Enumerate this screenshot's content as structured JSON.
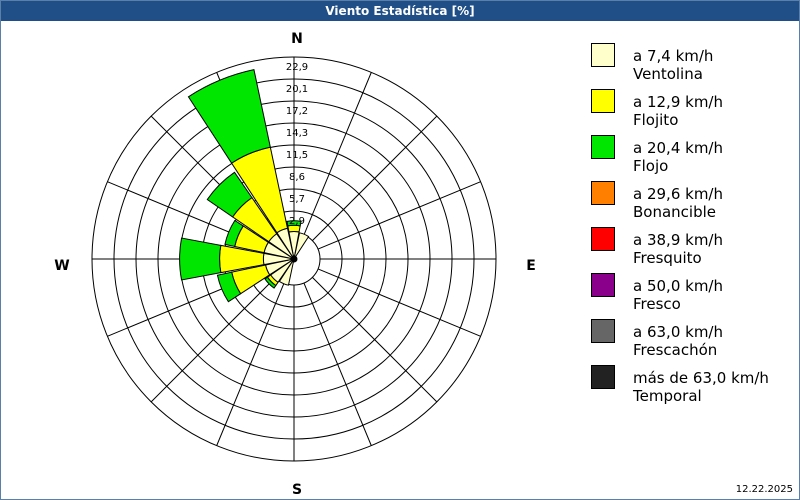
{
  "window": {
    "title": "Viento Estadística [%]"
  },
  "footer": {
    "date": "12.22.2025"
  },
  "directions": {
    "n": "N",
    "e": "E",
    "s": "S",
    "w": "W"
  },
  "legend": [
    {
      "speed": "a 7,4 km/h",
      "name": "Ventolina",
      "color": "#ffffcc"
    },
    {
      "speed": "a 12,9 km/h",
      "name": "Flojito",
      "color": "#ffff00"
    },
    {
      "speed": "a 20,4 km/h",
      "name": "Flojo",
      "color": "#00e600"
    },
    {
      "speed": "a 29,6 km/h",
      "name": "Bonancible",
      "color": "#ff8000"
    },
    {
      "speed": "a 38,9 km/h",
      "name": "Fresquito",
      "color": "#ff0000"
    },
    {
      "speed": "a 50,0 km/h",
      "name": "Fresco",
      "color": "#8b008b"
    },
    {
      "speed": "a 63,0 km/h",
      "name": "Frescachón",
      "color": "#666666"
    },
    {
      "speed": "más de 63,0 km/h",
      "name": "Temporal",
      "color": "#222222"
    }
  ],
  "chart_data": {
    "type": "wind-rose",
    "title": "Viento Estadística [%]",
    "unit": "%",
    "ring_labels": [
      "2,9",
      "5,7",
      "8,6",
      "11,5",
      "14,3",
      "17,2",
      "20,1",
      "22,9"
    ],
    "ring_max": 22.9,
    "sector_degrees": 22.5,
    "series": [
      {
        "name": "Ventolina",
        "color": "#ffffcc"
      },
      {
        "name": "Flojito",
        "color": "#ffff00"
      },
      {
        "name": "Flojo",
        "color": "#00e600"
      }
    ],
    "sectors": [
      {
        "direction": "N",
        "values": [
          0.2,
          0.8,
          0.6
        ]
      },
      {
        "direction": "NNE",
        "values": [
          0.1,
          0.0,
          0.0
        ]
      },
      {
        "direction": "NE",
        "values": [
          0.0,
          0.0,
          0.0
        ]
      },
      {
        "direction": "ENE",
        "values": [
          0.0,
          0.0,
          0.0
        ]
      },
      {
        "direction": "E",
        "values": [
          0.0,
          0.0,
          0.0
        ]
      },
      {
        "direction": "ESE",
        "values": [
          0.0,
          0.0,
          0.0
        ]
      },
      {
        "direction": "SE",
        "values": [
          0.0,
          0.0,
          0.0
        ]
      },
      {
        "direction": "SSE",
        "values": [
          0.0,
          0.0,
          0.0
        ]
      },
      {
        "direction": "S",
        "values": [
          0.0,
          0.0,
          0.0
        ]
      },
      {
        "direction": "SSW",
        "values": [
          0.1,
          0.0,
          0.0
        ]
      },
      {
        "direction": "SW",
        "values": [
          0.3,
          0.5,
          0.4
        ]
      },
      {
        "direction": "WSW",
        "values": [
          0.4,
          4.5,
          1.9
        ]
      },
      {
        "direction": "W",
        "values": [
          0.6,
          5.7,
          5.2
        ]
      },
      {
        "direction": "WNW",
        "values": [
          0.6,
          3.9,
          1.3
        ]
      },
      {
        "direction": "NW",
        "values": [
          0.6,
          5.7,
          4.0
        ]
      },
      {
        "direction": "NNW",
        "values": [
          0.7,
          10.8,
          10.3
        ]
      }
    ]
  }
}
